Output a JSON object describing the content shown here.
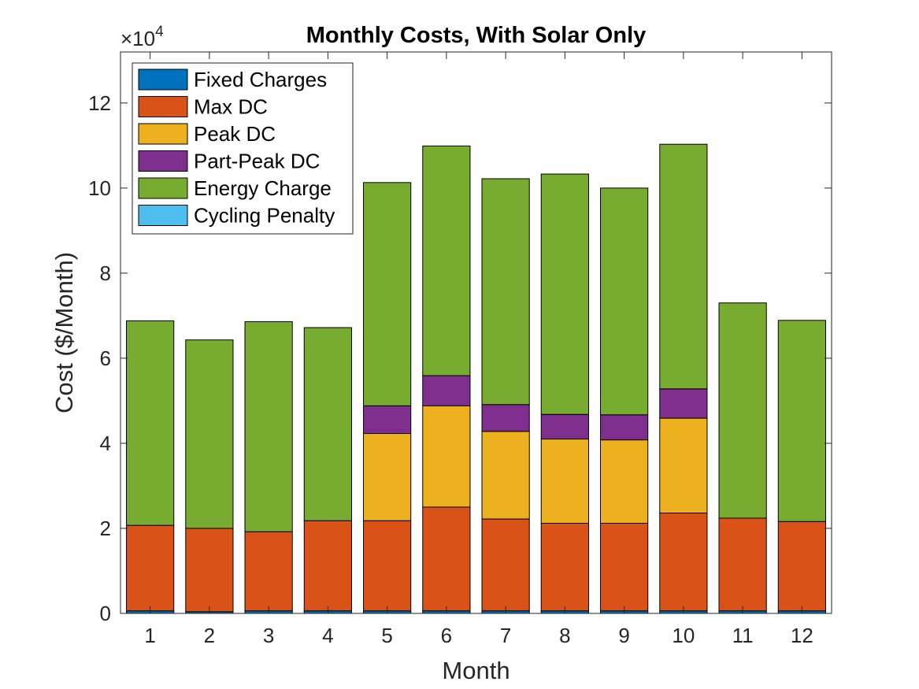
{
  "chart_data": {
    "type": "bar",
    "stacked": true,
    "title": "Monthly Costs, With Solar Only",
    "xlabel": "Month",
    "ylabel": "Cost ($/Month)",
    "y_exponent": {
      "times": "×10",
      "power": "4"
    },
    "categories": [
      "1",
      "2",
      "3",
      "4",
      "5",
      "6",
      "7",
      "8",
      "9",
      "10",
      "11",
      "12"
    ],
    "ylim": [
      0,
      132000
    ],
    "yticks": [
      0,
      20000,
      40000,
      60000,
      80000,
      100000,
      120000
    ],
    "ytick_labels": [
      "0",
      "2",
      "4",
      "6",
      "8",
      "10",
      "12"
    ],
    "grid": false,
    "legend_position": "top-left",
    "series": [
      {
        "name": "Fixed Charges",
        "color": "#0072BD",
        "values": [
          600,
          400,
          600,
          600,
          600,
          600,
          600,
          600,
          600,
          600,
          600,
          600
        ]
      },
      {
        "name": "Max DC",
        "color": "#D95319",
        "values": [
          20100,
          19600,
          18600,
          21200,
          21200,
          24400,
          21600,
          20600,
          20600,
          23000,
          21800,
          21000
        ]
      },
      {
        "name": "Peak DC",
        "color": "#EDB120",
        "values": [
          0,
          0,
          0,
          0,
          20500,
          23800,
          20600,
          19800,
          19600,
          22300,
          0,
          0
        ]
      },
      {
        "name": "Part-Peak DC",
        "color": "#7E2F8E",
        "values": [
          0,
          0,
          0,
          0,
          6500,
          7100,
          6300,
          5800,
          5900,
          6900,
          0,
          0
        ]
      },
      {
        "name": "Energy Charge",
        "color": "#77AC30",
        "values": [
          48100,
          44300,
          49400,
          45400,
          52500,
          54000,
          53100,
          56500,
          53300,
          57500,
          50600,
          47300
        ]
      },
      {
        "name": "Cycling Penalty",
        "color": "#4DBEEE",
        "values": [
          0,
          0,
          0,
          0,
          0,
          0,
          0,
          0,
          0,
          0,
          0,
          0
        ]
      }
    ]
  }
}
